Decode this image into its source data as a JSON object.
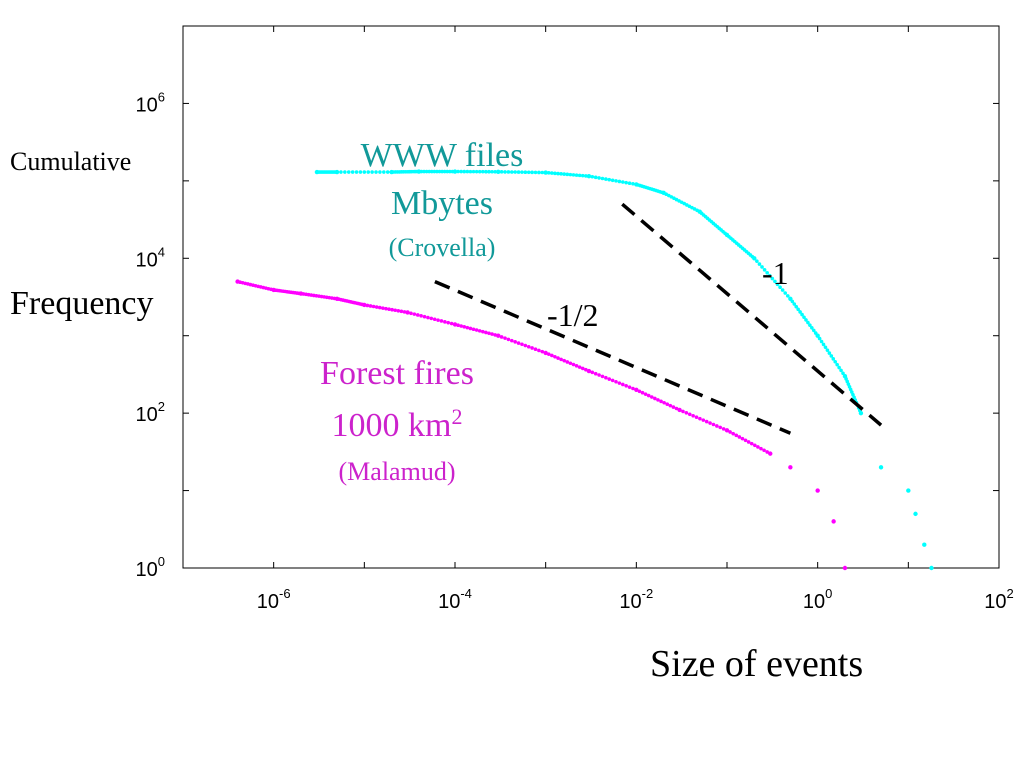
{
  "chart_data": {
    "type": "scatter",
    "x_scale": "log",
    "y_scale": "log",
    "xlim": [
      1e-07,
      100
    ],
    "ylim": [
      1,
      10000000
    ],
    "grid": false,
    "xlabel": "Size of events",
    "ylabel_line1": "Cumulative",
    "ylabel_line2": "Frequency",
    "x_ticks": [
      {
        "base": "10",
        "exp": "-6",
        "value": 1e-06
      },
      {
        "base": "10",
        "exp": "-4",
        "value": 0.0001
      },
      {
        "base": "10",
        "exp": "-2",
        "value": 0.01
      },
      {
        "base": "10",
        "exp": "0",
        "value": 1
      },
      {
        "base": "10",
        "exp": "2",
        "value": 100
      }
    ],
    "y_ticks": [
      {
        "base": "10",
        "exp": "0",
        "value": 1
      },
      {
        "base": "10",
        "exp": "2",
        "value": 100
      },
      {
        "base": "10",
        "exp": "4",
        "value": 10000
      },
      {
        "base": "10",
        "exp": "6",
        "value": 1000000
      }
    ],
    "series": [
      {
        "name": "WWW files",
        "color": "#00ffff",
        "points": [
          [
            3e-06,
            130000
          ],
          [
            5e-06,
            130000
          ],
          [
            2e-05,
            130000
          ],
          [
            4e-05,
            132000
          ],
          [
            0.0001,
            132000
          ],
          [
            0.0003,
            131000
          ],
          [
            0.001,
            128000
          ],
          [
            0.003,
            115000
          ],
          [
            0.01,
            90000
          ],
          [
            0.02,
            70000
          ],
          [
            0.05,
            40000
          ],
          [
            0.1,
            20000
          ],
          [
            0.2,
            10000
          ],
          [
            0.5,
            3000
          ],
          [
            1,
            1000
          ],
          [
            2,
            300
          ],
          [
            3,
            100
          ],
          [
            5,
            20
          ],
          [
            10,
            10
          ],
          [
            12,
            5
          ],
          [
            15,
            2
          ],
          [
            18,
            1
          ]
        ]
      },
      {
        "name": "Forest fires",
        "color": "#ff00ff",
        "points": [
          [
            4e-07,
            5000
          ],
          [
            1e-06,
            3900
          ],
          [
            2e-06,
            3500
          ],
          [
            5e-06,
            3000
          ],
          [
            1e-05,
            2500
          ],
          [
            3e-05,
            2000
          ],
          [
            0.0001,
            1400
          ],
          [
            0.0003,
            1000
          ],
          [
            0.001,
            600
          ],
          [
            0.003,
            350
          ],
          [
            0.01,
            200
          ],
          [
            0.03,
            110
          ],
          [
            0.1,
            60
          ],
          [
            0.3,
            30
          ],
          [
            0.5,
            20
          ],
          [
            1,
            10
          ],
          [
            1.5,
            4
          ],
          [
            2,
            1
          ]
        ]
      }
    ],
    "reference_lines": [
      {
        "label": "-1",
        "from": [
          0.007,
          50000
        ],
        "to": [
          5,
          70
        ]
      },
      {
        "label": "-1/2",
        "from": [
          6e-05,
          5000
        ],
        "to": [
          0.5,
          55
        ]
      }
    ],
    "annotations": {
      "www": {
        "title": "WWW files",
        "line2": "Mbytes",
        "line3": "(Crovella)",
        "color": "#119999"
      },
      "fire": {
        "title": "Forest fires",
        "line2": "1000 km",
        "line2_sup": "2",
        "line3": "(Malamud)",
        "color": "#cc22cc"
      }
    }
  }
}
